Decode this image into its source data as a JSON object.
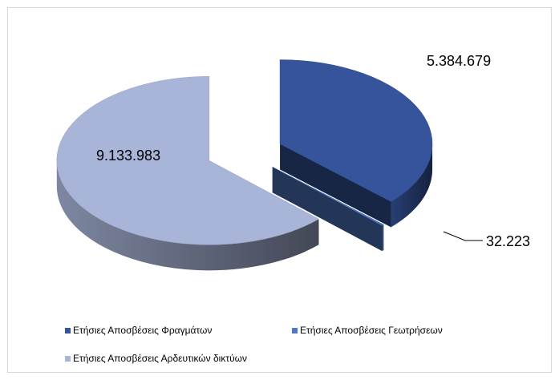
{
  "chart_data": {
    "type": "pie",
    "title": "",
    "three_d": true,
    "exploded": true,
    "categories": [
      "Ετήσιες Αποσβέσεις Φραγμάτων",
      "Ετήσιες Αποσβέσεις Γεωτρήσεων",
      "Ετήσιες Αποσβέσεις Αρδευτικών δικτύων"
    ],
    "values": [
      5384679,
      32223,
      9133983
    ],
    "data_labels": [
      "5.384.679",
      "32.223",
      "9.133.983"
    ],
    "colors": [
      "#35549b",
      "#4f78c4",
      "#a8b4d8"
    ],
    "legend_position": "bottom"
  }
}
